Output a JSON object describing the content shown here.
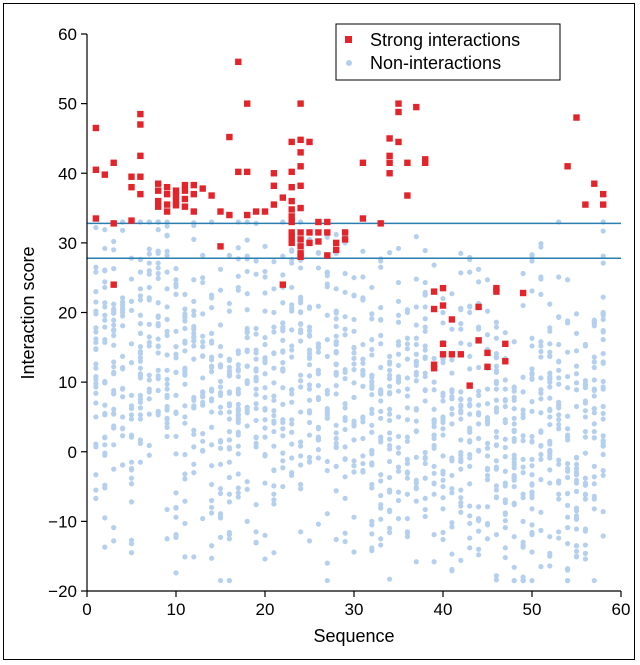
{
  "chart_data": {
    "type": "scatter",
    "title": "",
    "xlabel": "Sequence",
    "ylabel": "Interaction score",
    "xlim": [
      0,
      60
    ],
    "ylim": [
      -20,
      60
    ],
    "xticks": [
      "0",
      "10",
      "20",
      "30",
      "40",
      "50",
      "60"
    ],
    "yticks": [
      "−20",
      "−10",
      "0",
      "10",
      "20",
      "30",
      "40",
      "50",
      "60"
    ],
    "legend_position": "top-right",
    "grid": false,
    "thresholds": [
      32.8,
      27.8
    ],
    "threshold_color": "#2a7fb0",
    "series": [
      {
        "name": "Strong interactions",
        "marker": "square",
        "color": "#e3242b",
        "points": [
          [
            1,
            46.5
          ],
          [
            1,
            40.5
          ],
          [
            1,
            33.5
          ],
          [
            2,
            39.8
          ],
          [
            3,
            41.5
          ],
          [
            3,
            32.8
          ],
          [
            3,
            24
          ],
          [
            5,
            39.5
          ],
          [
            5,
            38
          ],
          [
            5,
            33.2
          ],
          [
            6,
            48.5
          ],
          [
            6,
            47
          ],
          [
            6,
            42.5
          ],
          [
            6,
            39.5
          ],
          [
            6,
            37
          ],
          [
            8,
            38.5
          ],
          [
            8,
            37.5
          ],
          [
            8,
            36
          ],
          [
            8,
            35.2
          ],
          [
            9,
            38
          ],
          [
            9,
            37
          ],
          [
            9,
            35.5
          ],
          [
            9,
            34.5
          ],
          [
            10,
            37.5
          ],
          [
            10,
            36.8
          ],
          [
            10,
            36
          ],
          [
            10,
            35.4
          ],
          [
            11,
            38.3
          ],
          [
            11,
            37.5
          ],
          [
            11,
            36.3
          ],
          [
            11,
            35.2
          ],
          [
            12,
            38.3
          ],
          [
            12,
            37
          ],
          [
            12,
            34.5
          ],
          [
            13,
            37.8
          ],
          [
            14,
            36.8
          ],
          [
            15,
            34.5
          ],
          [
            15,
            29.5
          ],
          [
            16,
            45.2
          ],
          [
            16,
            34
          ],
          [
            17,
            56
          ],
          [
            17,
            40.2
          ],
          [
            18,
            50
          ],
          [
            18,
            40.2
          ],
          [
            18,
            34
          ],
          [
            19,
            34.5
          ],
          [
            20,
            34.5
          ],
          [
            21,
            40
          ],
          [
            21,
            38.2
          ],
          [
            21,
            35.5
          ],
          [
            22,
            36.5
          ],
          [
            22,
            24
          ],
          [
            23,
            44.5
          ],
          [
            23,
            40.2
          ],
          [
            23,
            38
          ],
          [
            23,
            36
          ],
          [
            23,
            34.8
          ],
          [
            23,
            33.8
          ],
          [
            23,
            33
          ],
          [
            23,
            31.5
          ],
          [
            23,
            30.8
          ],
          [
            23,
            30
          ],
          [
            24,
            50
          ],
          [
            24,
            44.8
          ],
          [
            24,
            43
          ],
          [
            24,
            41
          ],
          [
            24,
            38.2
          ],
          [
            24,
            35
          ],
          [
            24,
            31.5
          ],
          [
            24,
            30.5
          ],
          [
            24,
            29.5
          ],
          [
            24,
            28.5
          ],
          [
            24,
            28
          ],
          [
            25,
            44.5
          ],
          [
            25,
            31.5
          ],
          [
            25,
            30
          ],
          [
            26,
            33
          ],
          [
            26,
            31.5
          ],
          [
            26,
            30.2
          ],
          [
            27,
            33
          ],
          [
            27,
            31.5
          ],
          [
            27,
            28.2
          ],
          [
            28,
            30
          ],
          [
            28,
            29
          ],
          [
            29,
            31.5
          ],
          [
            29,
            30.5
          ],
          [
            31,
            41.5
          ],
          [
            31,
            33.5
          ],
          [
            33,
            32.8
          ],
          [
            34,
            45
          ],
          [
            34,
            42.5
          ],
          [
            34,
            41.5
          ],
          [
            34,
            40
          ],
          [
            35,
            50
          ],
          [
            35,
            48.8
          ],
          [
            35,
            44.5
          ],
          [
            36,
            41.5
          ],
          [
            36,
            36.8
          ],
          [
            37,
            49.5
          ],
          [
            38,
            42
          ],
          [
            38,
            41.5
          ],
          [
            39,
            23
          ],
          [
            39,
            20.5
          ],
          [
            39,
            12.5
          ],
          [
            39,
            12
          ],
          [
            40,
            23.5
          ],
          [
            40,
            21
          ],
          [
            40,
            15.5
          ],
          [
            40,
            14
          ],
          [
            41,
            19
          ],
          [
            41,
            14
          ],
          [
            42,
            14
          ],
          [
            43,
            9.5
          ],
          [
            44,
            20.8
          ],
          [
            44,
            16
          ],
          [
            45,
            14.2
          ],
          [
            45,
            12.2
          ],
          [
            46,
            23.5
          ],
          [
            46,
            23
          ],
          [
            47,
            15.5
          ],
          [
            47,
            13
          ],
          [
            49,
            22.8
          ],
          [
            54,
            41
          ],
          [
            55,
            48
          ],
          [
            56,
            35.5
          ],
          [
            57,
            38.5
          ],
          [
            58,
            37
          ],
          [
            58,
            35.5
          ]
        ]
      },
      {
        "name": "Non-interactions",
        "marker": "circle",
        "color": "#b4d0ee",
        "points": []
      }
    ]
  }
}
